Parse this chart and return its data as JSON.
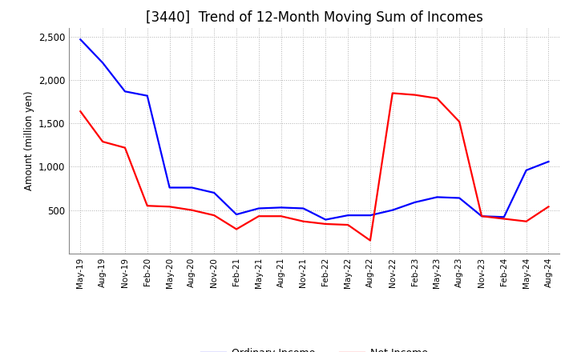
{
  "title": "[3440]  Trend of 12-Month Moving Sum of Incomes",
  "ylabel": "Amount (million yen)",
  "x_labels": [
    "May-19",
    "Aug-19",
    "Nov-19",
    "Feb-20",
    "May-20",
    "Aug-20",
    "Nov-20",
    "Feb-21",
    "May-21",
    "Aug-21",
    "Nov-21",
    "Feb-22",
    "May-22",
    "Aug-22",
    "Nov-22",
    "Feb-23",
    "May-23",
    "Aug-23",
    "Nov-23",
    "Feb-24",
    "May-24",
    "Aug-24"
  ],
  "ordinary_income": [
    2470,
    2200,
    1870,
    1820,
    760,
    760,
    700,
    450,
    520,
    530,
    520,
    390,
    440,
    440,
    500,
    590,
    650,
    640,
    430,
    420,
    960,
    1060
  ],
  "net_income": [
    1640,
    1290,
    1220,
    550,
    540,
    500,
    440,
    280,
    430,
    430,
    370,
    340,
    330,
    150,
    1850,
    1830,
    1790,
    1520,
    430,
    400,
    370,
    540
  ],
  "ordinary_color": "#0000ff",
  "net_color": "#ff0000",
  "ylim": [
    0,
    2600
  ],
  "yticks": [
    500,
    1000,
    1500,
    2000,
    2500
  ],
  "grid_color": "#b0b0b0",
  "background_color": "#ffffff",
  "title_fontsize": 12,
  "legend_fontsize": 9
}
